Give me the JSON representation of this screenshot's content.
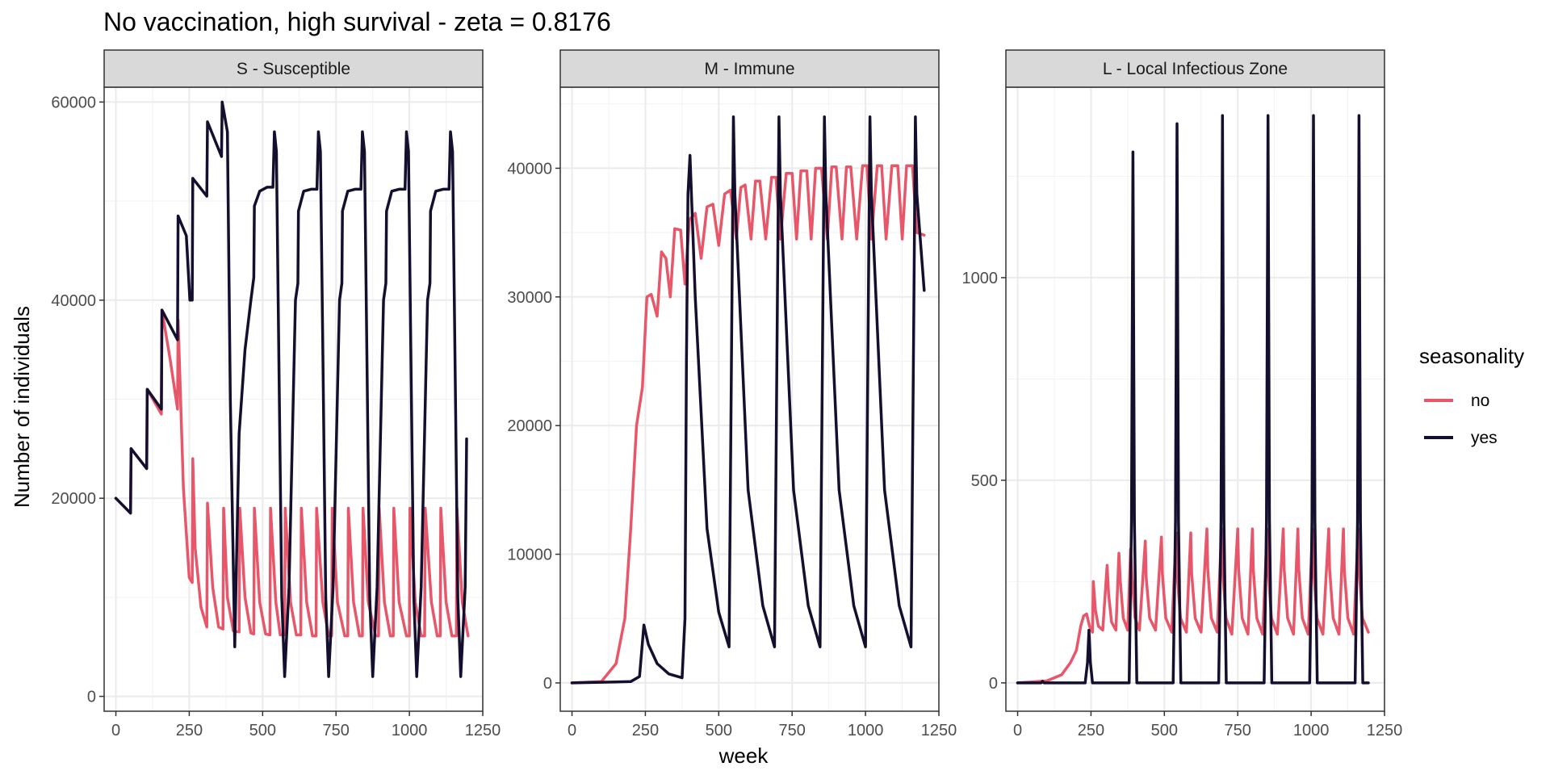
{
  "chart_data": {
    "type": "line",
    "title": "No vaccination, high survival - zeta = 0.8176",
    "xlabel": "week",
    "ylabel": "Number of individuals",
    "legend": {
      "title": "seasonality",
      "position": "right",
      "entries": [
        {
          "label": "no",
          "color": "#E8566A"
        },
        {
          "label": "yes",
          "color": "#140F2E"
        }
      ]
    },
    "grid": true,
    "panels": [
      {
        "strip": "S - Susceptible",
        "xlim": [
          -40,
          1250
        ],
        "ylim": [
          -1500,
          61500
        ],
        "x_ticks": [
          0,
          250,
          500,
          750,
          1000,
          1250
        ],
        "x_tick_labels": [
          "0",
          "250",
          "500",
          "750",
          "1000",
          "1250"
        ],
        "y_ticks": [
          0,
          20000,
          40000,
          60000
        ],
        "y_tick_labels": [
          "0",
          "20000",
          "40000",
          "60000"
        ],
        "series": [
          {
            "name": "no",
            "x": [
              0,
              50,
              52,
              105,
              107,
              155,
              157,
              185,
              210,
              212,
              230,
              250,
              260,
              262,
              270,
              290,
              310,
              312,
              330,
              350,
              365,
              367,
              380,
              400,
              420,
              422,
              440,
              460,
              470,
              472,
              490,
              510,
              525,
              527,
              545,
              560,
              575,
              577,
              595,
              615,
              630,
              632,
              650,
              670,
              682,
              684,
              705,
              725,
              735,
              737,
              755,
              780,
              790,
              792,
              810,
              830,
              840,
              842,
              860,
              885,
              895,
              897,
              915,
              935,
              945,
              947,
              965,
              990,
              1000,
              1002,
              1020,
              1040,
              1052,
              1054,
              1075,
              1095,
              1105,
              1107,
              1125,
              1145,
              1160,
              1162,
              1180,
              1200
            ],
            "y": [
              20000,
              18500,
              25000,
              23000,
              31000,
              28500,
              39000,
              34000,
              29000,
              38000,
              21000,
              12000,
              11500,
              24000,
              15000,
              9000,
              7000,
              19500,
              11000,
              7000,
              6800,
              19000,
              10000,
              6600,
              6500,
              19000,
              10000,
              6400,
              6300,
              19000,
              9500,
              6300,
              6200,
              19000,
              9500,
              6200,
              6200,
              19000,
              9500,
              6200,
              6200,
              19000,
              9500,
              6100,
              6100,
              19000,
              9500,
              6100,
              6100,
              19000,
              9500,
              6100,
              6100,
              19000,
              9500,
              6100,
              6100,
              19000,
              9500,
              6100,
              6100,
              19000,
              9500,
              6100,
              6100,
              19000,
              9500,
              6100,
              6100,
              19000,
              9500,
              6100,
              6100,
              19000,
              9500,
              6100,
              6100,
              19000,
              9500,
              6100,
              6100,
              19000,
              9500,
              6100
            ]
          },
          {
            "name": "yes",
            "x": [
              0,
              50,
              52,
              105,
              107,
              155,
              157,
              210,
              212,
              240,
              252,
              254,
              260,
              262,
              310,
              312,
              360,
              362,
              380,
              390,
              405,
              420,
              440,
              460,
              470,
              472,
              490,
              515,
              535,
              540,
              547,
              555,
              565,
              575,
              590,
              612,
              620,
              622,
              640,
              665,
              685,
              690,
              697,
              705,
              715,
              725,
              740,
              762,
              770,
              772,
              790,
              815,
              835,
              840,
              847,
              855,
              865,
              875,
              890,
              912,
              920,
              922,
              940,
              965,
              985,
              990,
              997,
              1005,
              1015,
              1025,
              1040,
              1062,
              1070,
              1072,
              1090,
              1115,
              1135,
              1140,
              1147,
              1155,
              1165,
              1175,
              1190,
              1195
            ],
            "y": [
              20000,
              18500,
              25000,
              23000,
              31000,
              29000,
              39000,
              36000,
              48500,
              46500,
              40000,
              40000,
              40000,
              52300,
              50500,
              58000,
              54500,
              60000,
              57000,
              30000,
              5000,
              26500,
              35000,
              40000,
              42300,
              49500,
              51000,
              51400,
              51400,
              57000,
              55000,
              35000,
              10000,
              2000,
              11000,
              40000,
              41700,
              49000,
              51000,
              51200,
              51200,
              57000,
              55000,
              35000,
              10000,
              2000,
              11000,
              40000,
              41700,
              49000,
              51000,
              51200,
              51200,
              57000,
              55000,
              35000,
              10000,
              2000,
              11000,
              40000,
              41700,
              49000,
              51000,
              51200,
              51200,
              57000,
              55000,
              35000,
              10000,
              2000,
              11000,
              40000,
              41700,
              49000,
              51000,
              51200,
              51200,
              57000,
              55000,
              35000,
              10000,
              2000,
              11000,
              26000
            ]
          }
        ]
      },
      {
        "strip": "M - Immune",
        "xlim": [
          -40,
          1250
        ],
        "ylim": [
          -2200,
          46300
        ],
        "x_ticks": [
          0,
          250,
          500,
          750,
          1000,
          1250
        ],
        "x_tick_labels": [
          "0",
          "250",
          "500",
          "750",
          "1000",
          "1250"
        ],
        "y_ticks": [
          0,
          10000,
          20000,
          30000,
          40000
        ],
        "y_tick_labels": [
          "0",
          "10000",
          "20000",
          "30000",
          "40000"
        ],
        "series": [
          {
            "name": "no",
            "x": [
              0,
              100,
              150,
              180,
              200,
              220,
              240,
              255,
              270,
              290,
              305,
              320,
              335,
              350,
              370,
              385,
              400,
              420,
              440,
              460,
              480,
              500,
              520,
              540,
              560,
              575,
              590,
              610,
              625,
              640,
              660,
              680,
              695,
              710,
              730,
              750,
              765,
              780,
              800,
              815,
              830,
              850,
              870,
              885,
              900,
              920,
              935,
              950,
              970,
              990,
              1005,
              1020,
              1040,
              1055,
              1070,
              1090,
              1110,
              1125,
              1140,
              1160,
              1175,
              1200
            ],
            "y": [
              0,
              100,
              1500,
              5000,
              12000,
              20000,
              23000,
              30000,
              30200,
              28500,
              33500,
              33000,
              30000,
              35300,
              35200,
              31000,
              36000,
              36500,
              33000,
              37000,
              37200,
              34000,
              38000,
              38300,
              34500,
              38500,
              38700,
              34500,
              39000,
              39000,
              34500,
              39300,
              39300,
              34500,
              39600,
              39600,
              34500,
              39800,
              39800,
              34500,
              40000,
              40000,
              34500,
              40100,
              40100,
              34500,
              40100,
              40100,
              34500,
              40200,
              40200,
              34500,
              40200,
              40200,
              34500,
              40200,
              40200,
              34500,
              40200,
              40200,
              35000,
              34800
            ]
          },
          {
            "name": "yes",
            "x": [
              0,
              200,
              230,
              245,
              260,
              290,
              330,
              375,
              385,
              390,
              395,
              402,
              420,
              460,
              500,
              535,
              545,
              550,
              555,
              600,
              650,
              690,
              700,
              705,
              710,
              755,
              805,
              845,
              855,
              860,
              865,
              910,
              960,
              1000,
              1010,
              1015,
              1020,
              1065,
              1115,
              1155,
              1165,
              1170,
              1175,
              1200
            ],
            "y": [
              0,
              100,
              500,
              4500,
              3000,
              1500,
              700,
              400,
              5000,
              25000,
              38000,
              41000,
              30000,
              12000,
              5500,
              2800,
              30000,
              44000,
              38000,
              15000,
              6000,
              2800,
              30000,
              44000,
              38000,
              15000,
              6000,
              2800,
              30000,
              44000,
              38000,
              15000,
              6000,
              2800,
              30000,
              44000,
              38000,
              15000,
              6000,
              2800,
              30000,
              44000,
              38000,
              30500
            ]
          }
        ]
      },
      {
        "strip": "L - Local Infectious Zone",
        "xlim": [
          -40,
          1250
        ],
        "ylim": [
          -70,
          1470
        ],
        "x_ticks": [
          0,
          250,
          500,
          750,
          1000,
          1250
        ],
        "x_tick_labels": [
          "0",
          "250",
          "500",
          "750",
          "1000",
          "1250"
        ],
        "y_ticks": [
          0,
          500,
          1000
        ],
        "y_tick_labels": [
          "0",
          "500",
          "1000"
        ],
        "series": [
          {
            "name": "no",
            "x": [
              0,
              100,
              150,
              180,
              200,
              215,
              225,
              235,
              245,
              255,
              258,
              265,
              275,
              290,
              305,
              310,
              320,
              335,
              345,
              350,
              360,
              375,
              385,
              390,
              400,
              415,
              435,
              438,
              450,
              470,
              490,
              493,
              505,
              525,
              540,
              543,
              555,
              575,
              590,
              593,
              605,
              625,
              645,
              648,
              660,
              680,
              695,
              698,
              710,
              730,
              750,
              753,
              765,
              785,
              800,
              803,
              815,
              835,
              850,
              853,
              865,
              885,
              905,
              908,
              920,
              940,
              955,
              958,
              970,
              990,
              1005,
              1008,
              1020,
              1040,
              1060,
              1063,
              1075,
              1095,
              1110,
              1113,
              1125,
              1145,
              1160,
              1163,
              1175,
              1195
            ],
            "y": [
              0,
              5,
              20,
              50,
              80,
              140,
              165,
              170,
              140,
              125,
              250,
              180,
              140,
              130,
              290,
              220,
              150,
              130,
              320,
              250,
              160,
              130,
              330,
              260,
              160,
              130,
              350,
              260,
              160,
              130,
              360,
              270,
              160,
              125,
              370,
              270,
              160,
              125,
              370,
              270,
              160,
              125,
              380,
              280,
              160,
              125,
              380,
              280,
              160,
              120,
              380,
              280,
              160,
              120,
              380,
              280,
              160,
              120,
              380,
              280,
              160,
              120,
              380,
              280,
              160,
              120,
              380,
              280,
              160,
              120,
              380,
              280,
              160,
              120,
              380,
              280,
              160,
              120,
              380,
              280,
              160,
              120,
              380,
              280,
              160,
              125
            ]
          },
          {
            "name": "yes",
            "x": [
              0,
              80,
              85,
              90,
              230,
              238,
              243,
              248,
              255,
              380,
              388,
              393,
              398,
              406,
              530,
              538,
              543,
              548,
              556,
              685,
              693,
              698,
              703,
              711,
              840,
              848,
              853,
              858,
              866,
              995,
              1003,
              1008,
              1013,
              1021,
              1150,
              1158,
              1163,
              1168,
              1176,
              1195
            ],
            "y": [
              0,
              0,
              4,
              0,
              0,
              50,
              130,
              50,
              0,
              0,
              400,
              1310,
              400,
              0,
              0,
              400,
              1380,
              400,
              0,
              0,
              400,
              1400,
              400,
              0,
              0,
              400,
              1400,
              400,
              0,
              0,
              400,
              1400,
              400,
              0,
              0,
              400,
              1400,
              400,
              0,
              0
            ]
          }
        ]
      }
    ]
  }
}
